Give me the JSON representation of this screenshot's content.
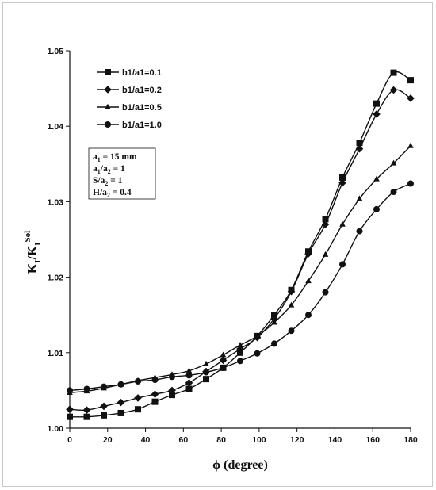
{
  "chart_data": {
    "type": "line",
    "xlabel": "ϕ (degree)",
    "ylabel": {
      "main": "K",
      "sub": "I",
      "slash": "/K",
      "sub2": "I",
      "sup": "Sol"
    },
    "xlim": [
      0,
      180
    ],
    "ylim": [
      1.0,
      1.05
    ],
    "x_ticks": [
      "0",
      "20",
      "40",
      "60",
      "80",
      "100",
      "120",
      "140",
      "160",
      "180"
    ],
    "y_ticks": [
      "1.00",
      "1.01",
      "1.02",
      "1.03",
      "1.04",
      "1.05"
    ],
    "grid": false,
    "legend_position": "top-left",
    "x": [
      0,
      9,
      18,
      27,
      36,
      45,
      54,
      63,
      72,
      81,
      90,
      99,
      108,
      117,
      126,
      135,
      144,
      153,
      162,
      171,
      180
    ],
    "series": [
      {
        "name": "b1/a1=0.1",
        "marker": "square",
        "values": [
          1.0015,
          1.0015,
          1.0017,
          1.002,
          1.0025,
          1.0035,
          1.0044,
          1.0052,
          1.0065,
          1.008,
          1.01,
          1.0122,
          1.015,
          1.0183,
          1.0234,
          1.0277,
          1.0332,
          1.0378,
          1.043,
          1.0471,
          1.0461
        ]
      },
      {
        "name": "b1/a1=0.2",
        "marker": "diamond",
        "values": [
          1.0025,
          1.0024,
          1.0029,
          1.0034,
          1.004,
          1.0045,
          1.005,
          1.006,
          1.0075,
          1.009,
          1.0105,
          1.012,
          1.0145,
          1.0181,
          1.0231,
          1.027,
          1.0325,
          1.037,
          1.0416,
          1.0448,
          1.0437
        ]
      },
      {
        "name": "b1/a1=0.5",
        "marker": "triangle",
        "values": [
          1.0047,
          1.0049,
          1.0053,
          1.0058,
          1.0063,
          1.0067,
          1.0071,
          1.0076,
          1.0085,
          1.0097,
          1.011,
          1.0122,
          1.014,
          1.0163,
          1.0195,
          1.023,
          1.027,
          1.0304,
          1.033,
          1.0351,
          1.0374
        ]
      },
      {
        "name": "b1/a1=1.0",
        "marker": "circle",
        "values": [
          1.005,
          1.0052,
          1.0055,
          1.0058,
          1.0062,
          1.0064,
          1.0068,
          1.007,
          1.0074,
          1.008,
          1.0089,
          1.0099,
          1.0112,
          1.0129,
          1.015,
          1.018,
          1.0217,
          1.0261,
          1.029,
          1.0313,
          1.0324
        ]
      }
    ],
    "parameters": [
      {
        "main": "a",
        "sub": "1",
        "rest": " = 15 mm"
      },
      {
        "main": "a",
        "sub": "1",
        "rest": "/a",
        "sub2": "2",
        "rest2": " = 1"
      },
      {
        "main": "S/a",
        "sub": "2",
        "rest": " = 1"
      },
      {
        "main": "H/a",
        "sub": "2",
        "rest": " = 0.4"
      }
    ]
  }
}
